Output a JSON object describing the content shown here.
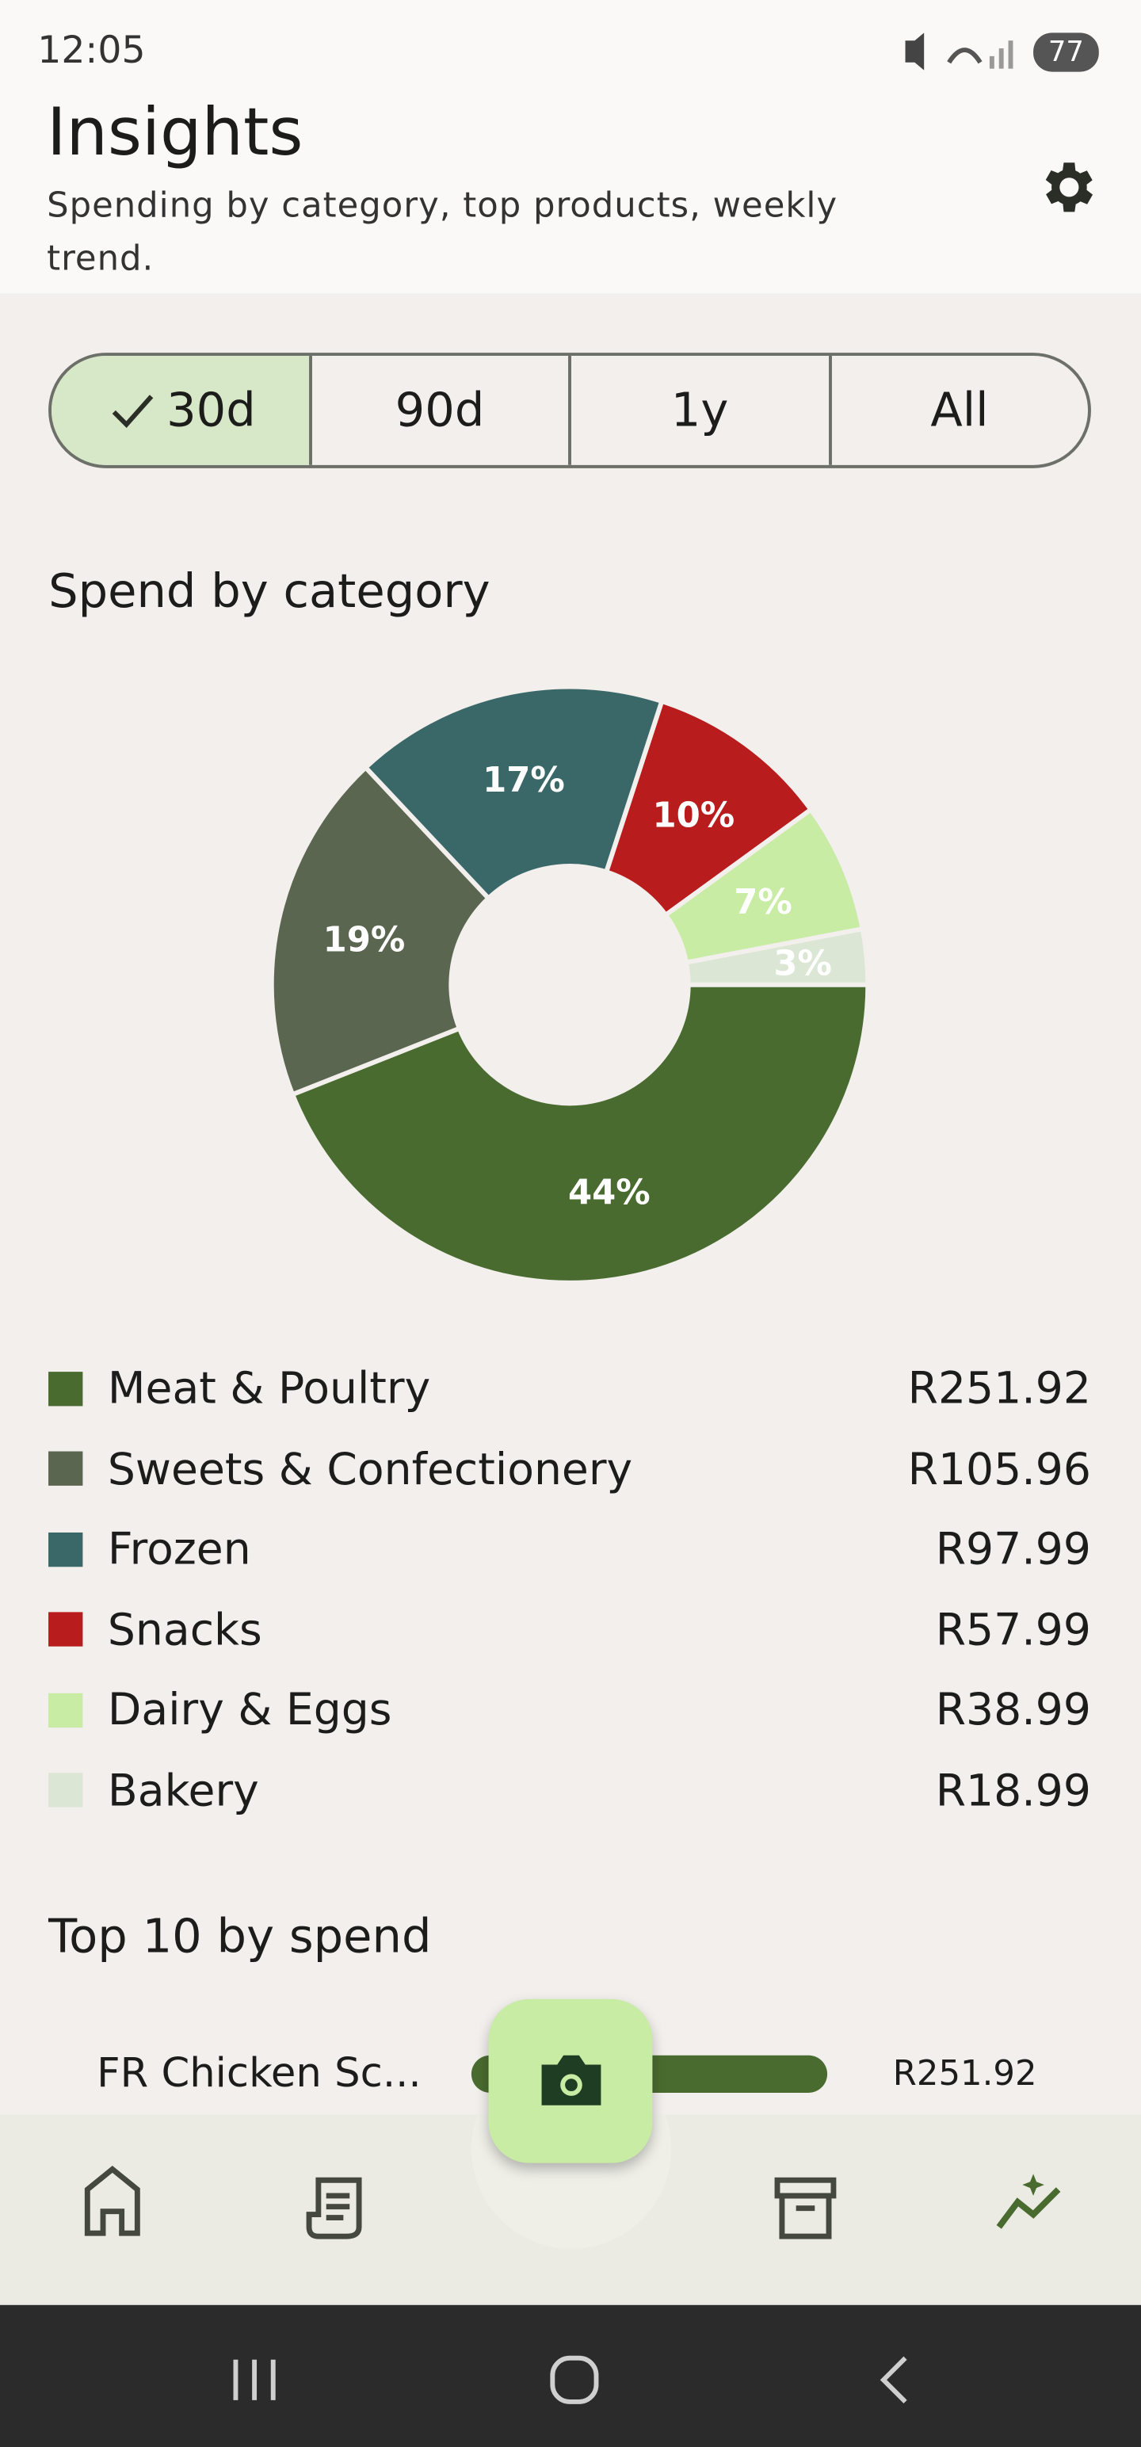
{
  "status_bar": {
    "time": "12:05",
    "battery": "77"
  },
  "header": {
    "title": "Insights",
    "subtitle": "Spending by category, top products, weekly trend."
  },
  "range_tabs": {
    "options": [
      "30d",
      "90d",
      "1y",
      "All"
    ],
    "selected": 0
  },
  "chart_data": {
    "type": "pie",
    "title": "Spend by category",
    "donut": true,
    "categories": [
      "Meat & Poultry",
      "Sweets & Confectionery",
      "Frozen",
      "Snacks",
      "Dairy & Eggs",
      "Bakery"
    ],
    "values": [
      44,
      19,
      17,
      10,
      7,
      3
    ],
    "value_labels": [
      "44%",
      "19%",
      "17%",
      "10%",
      "7%",
      "3%"
    ],
    "colors": [
      "#4a6b30",
      "#5a6650",
      "#3a6868",
      "#b81c1c",
      "#c8eca4",
      "#dce6d4"
    ],
    "amounts": [
      "R251.92",
      "R105.96",
      "R97.99",
      "R57.99",
      "R38.99",
      "R18.99"
    ]
  },
  "top_products": {
    "title": "Top 10 by spend",
    "items": [
      {
        "name": "FR Chicken Sc...",
        "value": 251.92,
        "amount": "R251.92"
      }
    ]
  }
}
